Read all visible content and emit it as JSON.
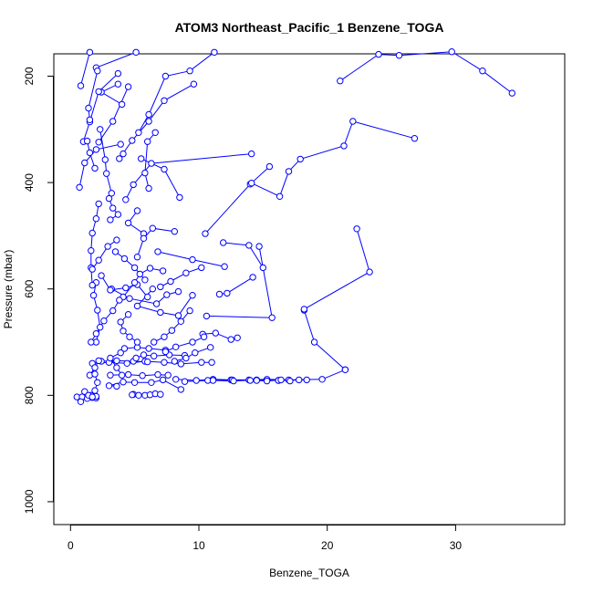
{
  "chart_data": {
    "type": "scatter",
    "title": "ATOM3 Northeast_Pacific_1 Benzene_TOGA",
    "xlabel": "Benzene_TOGA",
    "ylabel": "Pressure (mbar)",
    "xlim": [
      -1.3,
      38.5
    ],
    "ylim": [
      1043,
      158
    ],
    "y_reversed": true,
    "xticks": [
      0,
      10,
      20,
      30
    ],
    "yticks": [
      200,
      400,
      600,
      800,
      1000
    ],
    "marker": "open-circle",
    "line_color": "#0000ff",
    "grid": false,
    "series": [
      {
        "profiles": [
          [
            [
              0.5,
              803
            ],
            [
              0.9,
              803
            ],
            [
              1.3,
              806
            ],
            [
              1.7,
              804
            ],
            [
              2.0,
              805
            ],
            [
              1.6,
              800
            ],
            [
              1.1,
              793
            ],
            [
              0.8,
              812
            ],
            [
              1.4,
              800
            ],
            [
              2.0,
              802
            ]
          ],
          [
            [
              4.9,
              798
            ],
            [
              5.3,
              800
            ],
            [
              5.8,
              800
            ],
            [
              6.2,
              799
            ],
            [
              6.6,
              797
            ],
            [
              7.0,
              798
            ],
            [
              4.8,
              799
            ]
          ],
          [
            [
              8.2,
              770
            ],
            [
              9.8,
              772
            ],
            [
              11.1,
              770
            ],
            [
              12.5,
              771
            ],
            [
              13.9,
              771
            ],
            [
              15.3,
              770
            ],
            [
              17.0,
              771
            ],
            [
              19.6,
              770
            ],
            [
              21.4,
              752
            ]
          ],
          [
            [
              1.7,
              740
            ],
            [
              3.0,
              738
            ],
            [
              4.4,
              740
            ],
            [
              5.8,
              736
            ],
            [
              7.3,
              738
            ],
            [
              8.6,
              741
            ],
            [
              10.2,
              738
            ],
            [
              11.0,
              738
            ]
          ],
          [
            [
              2.4,
              736
            ],
            [
              3.6,
              735
            ],
            [
              4.9,
              736
            ],
            [
              6.0,
              737
            ]
          ],
          [
            [
              3.1,
              762
            ],
            [
              4.5,
              761
            ],
            [
              5.6,
              763
            ],
            [
              6.8,
              761
            ],
            [
              7.6,
              762
            ]
          ],
          [
            [
              4.2,
              712
            ],
            [
              5.2,
              710
            ],
            [
              6.1,
              712
            ],
            [
              7.4,
              715
            ]
          ],
          [
            [
              3.6,
              783
            ],
            [
              3.0,
              782
            ],
            [
              4.1,
              775
            ],
            [
              5.0,
              776
            ],
            [
              6.3,
              776
            ],
            [
              7.2,
              771
            ],
            [
              8.6,
              789
            ]
          ],
          [
            [
              1.5,
              762
            ],
            [
              1.9,
              748
            ],
            [
              2.2,
              735
            ]
          ],
          [
            [
              5.1,
              730
            ],
            [
              5.7,
              724
            ],
            [
              6.5,
              726
            ],
            [
              7.7,
              724
            ],
            [
              8.9,
              725
            ]
          ],
          [
            [
              8.9,
              774
            ],
            [
              10.7,
              772
            ],
            [
              12.6,
              771
            ],
            [
              14.0,
              772
            ],
            [
              16.2,
              772
            ],
            [
              18.4,
              771
            ]
          ],
          [
            [
              11.1,
              772
            ],
            [
              12.7,
              773
            ],
            [
              14.5,
              771
            ],
            [
              16.2,
              772
            ],
            [
              17.8,
              771
            ]
          ],
          [
            [
              10.3,
              685
            ],
            [
              11.3,
              683
            ],
            [
              12.5,
              695
            ],
            [
              13.0,
              692
            ]
          ],
          [
            [
              14.5,
              772
            ],
            [
              15.3,
              773
            ],
            [
              16.4,
              771
            ],
            [
              17.1,
              773
            ]
          ],
          [
            [
              18.2,
              640
            ],
            [
              19.0,
              700
            ],
            [
              21.4,
              752
            ]
          ],
          [
            [
              18.2,
              638
            ],
            [
              23.3,
              568
            ],
            [
              22.3,
              487
            ]
          ],
          [
            [
              10.5,
              496
            ],
            [
              14.0,
              403
            ],
            [
              15.5,
              370
            ]
          ],
          [
            [
              14.1,
              401
            ],
            [
              16.3,
              426
            ],
            [
              17.0,
              379
            ],
            [
              17.9,
              356
            ],
            [
              21.3,
              331
            ],
            [
              22.0,
              285
            ],
            [
              26.8,
              317
            ]
          ],
          [
            [
              21.0,
              209
            ],
            [
              24.0,
              159
            ],
            [
              25.6,
              161
            ],
            [
              29.7,
              154
            ],
            [
              32.1,
              190
            ],
            [
              34.4,
              232
            ]
          ],
          [
            [
              0.8,
              218
            ],
            [
              1.5,
              155
            ]
          ],
          [
            [
              2.0,
              184
            ],
            [
              5.1,
              155
            ]
          ],
          [
            [
              3.7,
              215
            ],
            [
              2.4,
              230
            ],
            [
              4.0,
              253
            ]
          ],
          [
            [
              1.0,
              323
            ],
            [
              1.5,
              286
            ],
            [
              2.2,
              229
            ],
            [
              3.7,
              195
            ]
          ],
          [
            [
              5.3,
              306
            ],
            [
              6.1,
              272
            ],
            [
              7.4,
              200
            ],
            [
              9.3,
              190
            ],
            [
              11.2,
              155
            ]
          ],
          [
            [
              2.2,
              324
            ],
            [
              3.3,
              285
            ],
            [
              4.5,
              220
            ]
          ],
          [
            [
              1.5,
              282
            ],
            [
              1.4,
              260
            ],
            [
              2.1,
              190
            ]
          ],
          [
            [
              0.7,
              409
            ],
            [
              1.1,
              363
            ],
            [
              2.0,
              338
            ],
            [
              3.9,
              328
            ]
          ],
          [
            [
              4.1,
              346
            ],
            [
              3.8,
              355
            ],
            [
              4.8,
              321
            ],
            [
              6.1,
              285
            ],
            [
              7.3,
              246
            ],
            [
              9.6,
              215
            ]
          ],
          [
            [
              3.2,
              420
            ],
            [
              2.8,
              383
            ],
            [
              2.7,
              357
            ],
            [
              2.3,
              300
            ]
          ],
          [
            [
              4.3,
              432
            ],
            [
              4.9,
              404
            ],
            [
              6.3,
              364
            ],
            [
              14.1,
              346
            ]
          ],
          [
            [
              6.1,
              411
            ],
            [
              5.8,
              382
            ],
            [
              6.0,
              323
            ],
            [
              6.6,
              306
            ]
          ],
          [
            [
              5.2,
              453
            ],
            [
              4.5,
              476
            ],
            [
              5.7,
              496
            ]
          ],
          [
            [
              8.5,
              428
            ],
            [
              7.3,
              375
            ],
            [
              5.5,
              355
            ]
          ],
          [
            [
              11.9,
              513
            ],
            [
              13.9,
              518
            ],
            [
              15.0,
              560
            ]
          ],
          [
            [
              12.0,
              558
            ],
            [
              9.5,
              545
            ],
            [
              6.8,
              530
            ]
          ],
          [
            [
              14.2,
              578
            ],
            [
              12.2,
              608
            ],
            [
              11.6,
              610
            ]
          ],
          [
            [
              14.7,
              520
            ],
            [
              15.7,
              654
            ],
            [
              10.6,
              651
            ]
          ],
          [
            [
              6.4,
              600
            ],
            [
              5.2,
              632
            ],
            [
              7.0,
              644
            ],
            [
              8.4,
              650
            ],
            [
              9.5,
              612
            ]
          ],
          [
            [
              3.2,
              600
            ],
            [
              4.6,
              618
            ],
            [
              6.7,
              628
            ],
            [
              7.5,
              611
            ],
            [
              8.4,
              605
            ]
          ],
          [
            [
              2.4,
              575
            ],
            [
              3.1,
              602
            ],
            [
              4.3,
              598
            ],
            [
              5.2,
              592
            ],
            [
              6.0,
              615
            ]
          ],
          [
            [
              7.2,
              566
            ],
            [
              6.2,
              561
            ],
            [
              5.4,
              572
            ],
            [
              5.0,
              588
            ],
            [
              4.1,
              615
            ]
          ],
          [
            [
              2.0,
              588
            ],
            [
              1.8,
              612
            ],
            [
              2.1,
              640
            ],
            [
              2.3,
              672
            ],
            [
              2.0,
              700
            ]
          ],
          [
            [
              1.6,
              700
            ],
            [
              2.0,
              684
            ],
            [
              2.6,
              660
            ],
            [
              3.3,
              641
            ],
            [
              3.8,
              621
            ]
          ],
          [
            [
              4.5,
              648
            ],
            [
              3.9,
              662
            ],
            [
              4.1,
              679
            ],
            [
              4.6,
              690
            ],
            [
              5.2,
              700
            ]
          ],
          [
            [
              1.9,
              760
            ],
            [
              2.1,
              776
            ],
            [
              1.9,
              791
            ],
            [
              1.7,
              803
            ]
          ],
          [
            [
              3.9,
              720
            ],
            [
              3.1,
              730
            ],
            [
              3.6,
              748
            ],
            [
              4.0,
              762
            ]
          ],
          [
            [
              6.5,
              700
            ],
            [
              7.3,
              690
            ],
            [
              7.9,
              678
            ],
            [
              8.6,
              661
            ],
            [
              9.3,
              641
            ]
          ],
          [
            [
              7.4,
              718
            ],
            [
              8.2,
              709
            ],
            [
              9.5,
              700
            ],
            [
              10.4,
              690
            ]
          ],
          [
            [
              8.1,
              736
            ],
            [
              9.0,
              730
            ],
            [
              9.7,
              720
            ],
            [
              10.9,
              710
            ]
          ],
          [
            [
              2.2,
              440
            ],
            [
              2.0,
              468
            ],
            [
              1.7,
              495
            ],
            [
              1.6,
              528
            ],
            [
              1.6,
              560
            ],
            [
              1.7,
              593
            ]
          ],
          [
            [
              1.9,
              373
            ],
            [
              1.5,
              344
            ],
            [
              1.3,
              322
            ]
          ],
          [
            [
              3.1,
              470
            ],
            [
              3.7,
              460
            ],
            [
              3.3,
              448
            ],
            [
              3.0,
              430
            ]
          ],
          [
            [
              3.6,
              508
            ],
            [
              2.9,
              520
            ],
            [
              2.2,
              546
            ],
            [
              1.7,
              563
            ]
          ],
          [
            [
              3.5,
              530
            ],
            [
              4.2,
              543
            ],
            [
              5.0,
              560
            ],
            [
              5.8,
              583
            ]
          ],
          [
            [
              8.1,
              492
            ],
            [
              6.4,
              486
            ],
            [
              5.7,
              505
            ],
            [
              5.2,
              540
            ]
          ],
          [
            [
              10.2,
              560
            ],
            [
              9.0,
              570
            ],
            [
              7.8,
              586
            ],
            [
              7.0,
              596
            ]
          ]
        ]
      }
    ]
  }
}
